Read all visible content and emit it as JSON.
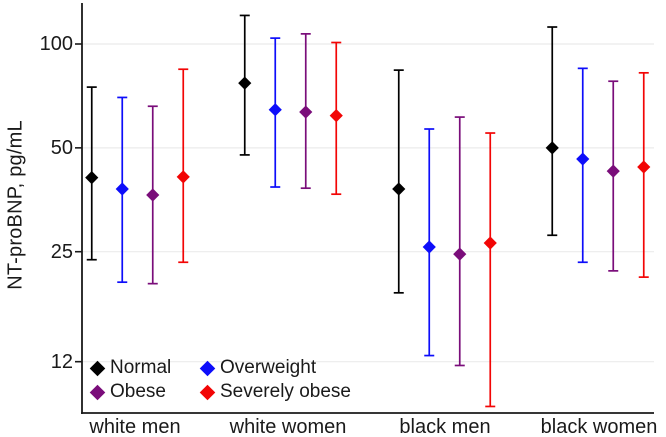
{
  "chart_data": {
    "type": "scatter",
    "subtype": "point-estimate-with-error-bars",
    "title": "",
    "xlabel": "",
    "ylabel": "NT-proBNP, pg/mL",
    "yscale": "log",
    "yticks": [
      100,
      50,
      25,
      12
    ],
    "ylim": [
      8.5,
      131
    ],
    "grid": "horizontal-light",
    "categories": [
      "white men",
      "white women",
      "black men",
      "black women"
    ],
    "series": [
      {
        "name": "Normal",
        "color": "#000000",
        "values": [
          41,
          77,
          38,
          50
        ],
        "lower": [
          23.7,
          47.7,
          19,
          27.9
        ],
        "upper": [
          75,
          121,
          84,
          112
        ]
      },
      {
        "name": "Overweight",
        "color": "#0d0dfa",
        "values": [
          38,
          64.5,
          25.8,
          46.4
        ],
        "lower": [
          20.4,
          38.5,
          12.5,
          23.3
        ],
        "upper": [
          70,
          104,
          56.7,
          85
        ]
      },
      {
        "name": "Obese",
        "color": "#7a0d7a",
        "values": [
          36.5,
          63.5,
          24.6,
          42.8
        ],
        "lower": [
          20.2,
          38.2,
          11.7,
          22
        ],
        "upper": [
          66,
          107,
          61.4,
          78
        ]
      },
      {
        "name": "Severely obese",
        "color": "#f20505",
        "values": [
          41.2,
          62,
          26.5,
          44
        ],
        "lower": [
          23.3,
          36.7,
          8.9,
          21.1
        ],
        "upper": [
          84.5,
          101,
          55.2,
          82.5
        ]
      }
    ],
    "legend": {
      "position": "inside-bottom-left",
      "rows": [
        [
          "Normal",
          "Overweight"
        ],
        [
          "Obese",
          "Severely obese"
        ]
      ]
    }
  },
  "colors": {
    "axis": "#1a1a1a",
    "grid": "#ebebeb",
    "text": "#1a1a1a",
    "background": "#ffffff"
  }
}
